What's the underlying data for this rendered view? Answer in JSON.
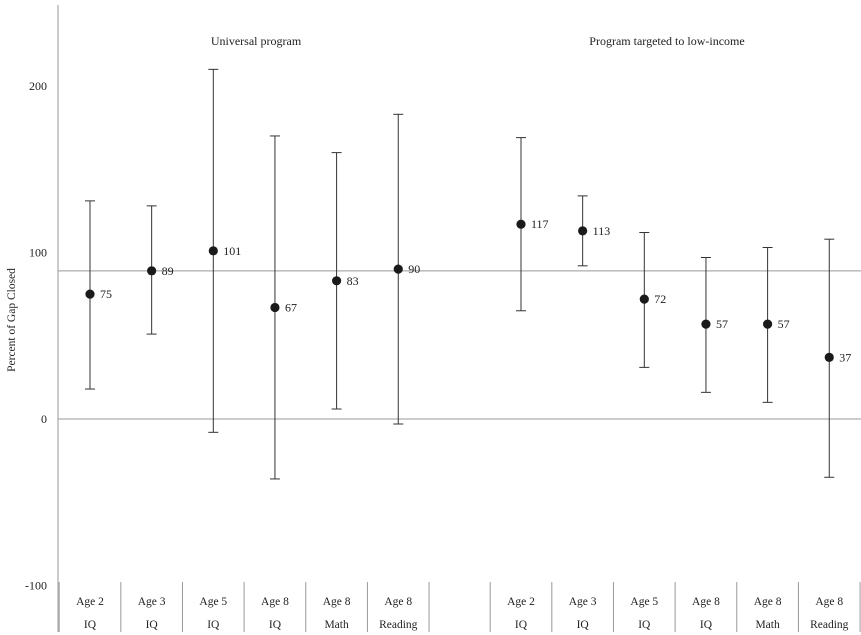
{
  "chart_data": {
    "type": "scatter",
    "ylabel": "Percent of Gap Closed",
    "ylim": [
      -100,
      250
    ],
    "yticks": [
      -100,
      0,
      100,
      200
    ],
    "reference_line": 89,
    "groups": [
      {
        "label": "Universal program",
        "points": [
          {
            "cat1": "Age 2",
            "cat2": "IQ",
            "value": 75,
            "low": 18,
            "high": 131
          },
          {
            "cat1": "Age 3",
            "cat2": "IQ",
            "value": 89,
            "low": 51,
            "high": 128
          },
          {
            "cat1": "Age 5",
            "cat2": "IQ",
            "value": 101,
            "low": -8,
            "high": 210
          },
          {
            "cat1": "Age 8",
            "cat2": "IQ",
            "value": 67,
            "low": -36,
            "high": 170
          },
          {
            "cat1": "Age 8",
            "cat2": "Math",
            "value": 83,
            "low": 6,
            "high": 160
          },
          {
            "cat1": "Age 8",
            "cat2": "Reading",
            "value": 90,
            "low": -3,
            "high": 183
          }
        ]
      },
      {
        "label": "Program targeted to low-income",
        "points": [
          {
            "cat1": "Age 2",
            "cat2": "IQ",
            "value": 117,
            "low": 65,
            "high": 169
          },
          {
            "cat1": "Age 3",
            "cat2": "IQ",
            "value": 113,
            "low": 92,
            "high": 134
          },
          {
            "cat1": "Age 5",
            "cat2": "IQ",
            "value": 72,
            "low": 31,
            "high": 112
          },
          {
            "cat1": "Age 8",
            "cat2": "IQ",
            "value": 57,
            "low": 16,
            "high": 97
          },
          {
            "cat1": "Age 8",
            "cat2": "Math",
            "value": 57,
            "low": 10,
            "high": 103
          },
          {
            "cat1": "Age 8",
            "cat2": "Reading",
            "value": 37,
            "low": -35,
            "high": 108
          }
        ]
      }
    ]
  },
  "colors": {
    "marker": "#1a1a1a",
    "errorbar": "#333333",
    "gridline": "#999999",
    "axis": "#999999",
    "text": "#222222"
  }
}
